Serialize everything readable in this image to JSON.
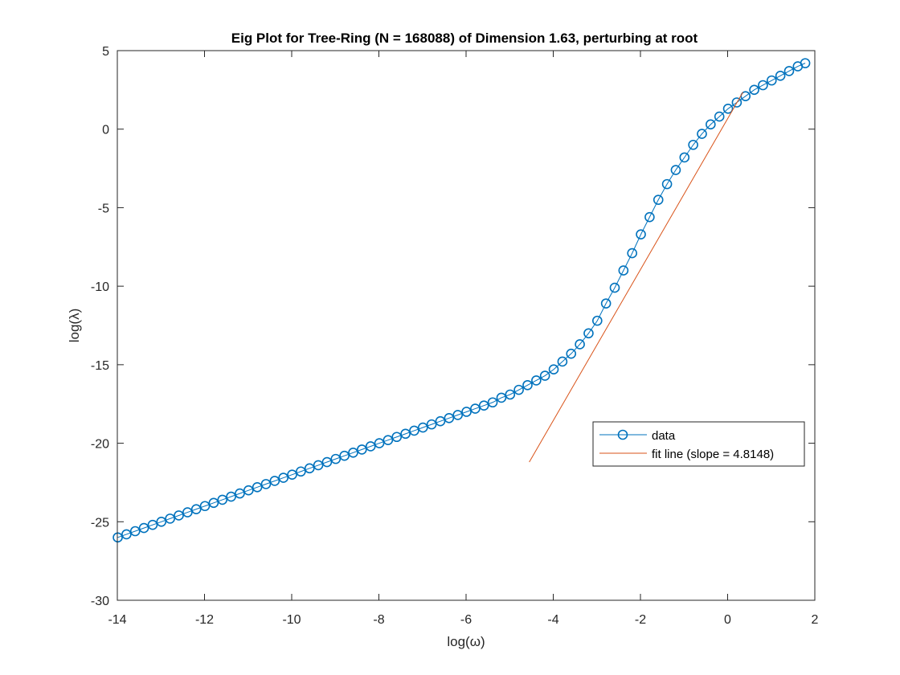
{
  "chart_data": {
    "type": "line",
    "title": "Eig Plot for Tree-Ring (N = 168088) of Dimension 1.63, perturbing at root",
    "xlabel": "log(ω)",
    "ylabel": "log(λ)",
    "xlim": [
      -14,
      2
    ],
    "ylim": [
      -30,
      5
    ],
    "xticks": [
      -14,
      -12,
      -10,
      -8,
      -6,
      -4,
      -2,
      0,
      2
    ],
    "yticks": [
      -30,
      -25,
      -20,
      -15,
      -10,
      -5,
      0,
      5
    ],
    "xtick_labels": [
      "-14",
      "-12",
      "-10",
      "-8",
      "-6",
      "-4",
      "-2",
      "0",
      "2"
    ],
    "ytick_labels": [
      "-30",
      "-25",
      "-20",
      "-15",
      "-10",
      "-5",
      "0",
      "5"
    ],
    "grid": false,
    "legend_position": "right",
    "series": [
      {
        "name": "data",
        "marker": "circle",
        "color": "#0072BD",
        "x": [
          -13.99,
          -13.79,
          -13.59,
          -13.39,
          -13.19,
          -12.99,
          -12.79,
          -12.59,
          -12.39,
          -12.19,
          -11.99,
          -11.79,
          -11.59,
          -11.39,
          -11.19,
          -10.99,
          -10.79,
          -10.59,
          -10.39,
          -10.19,
          -9.99,
          -9.79,
          -9.59,
          -9.39,
          -9.19,
          -8.99,
          -8.79,
          -8.59,
          -8.39,
          -8.19,
          -7.99,
          -7.79,
          -7.59,
          -7.39,
          -7.19,
          -6.99,
          -6.79,
          -6.59,
          -6.39,
          -6.19,
          -5.99,
          -5.79,
          -5.59,
          -5.39,
          -5.19,
          -4.99,
          -4.79,
          -4.59,
          -4.39,
          -4.19,
          -3.99,
          -3.79,
          -3.59,
          -3.39,
          -3.19,
          -2.99,
          -2.79,
          -2.59,
          -2.39,
          -2.19,
          -1.99,
          -1.79,
          -1.59,
          -1.39,
          -1.19,
          -0.99,
          -0.79,
          -0.59,
          -0.39,
          -0.19,
          0.01,
          0.21,
          0.41,
          0.61,
          0.81,
          1.01,
          1.21,
          1.41,
          1.61,
          1.78
        ],
        "y": [
          -26.0,
          -25.8,
          -25.6,
          -25.4,
          -25.2,
          -25.0,
          -24.8,
          -24.6,
          -24.4,
          -24.2,
          -24.0,
          -23.8,
          -23.6,
          -23.4,
          -23.2,
          -23.0,
          -22.8,
          -22.6,
          -22.4,
          -22.2,
          -22.0,
          -21.8,
          -21.6,
          -21.4,
          -21.2,
          -21.0,
          -20.8,
          -20.6,
          -20.4,
          -20.2,
          -20.0,
          -19.8,
          -19.6,
          -19.4,
          -19.2,
          -19.0,
          -18.8,
          -18.6,
          -18.4,
          -18.2,
          -18.0,
          -17.8,
          -17.6,
          -17.4,
          -17.1,
          -16.9,
          -16.6,
          -16.3,
          -16.0,
          -15.7,
          -15.3,
          -14.8,
          -14.3,
          -13.7,
          -13.0,
          -12.2,
          -11.1,
          -10.1,
          -9.0,
          -7.9,
          -6.7,
          -5.6,
          -4.5,
          -3.5,
          -2.6,
          -1.8,
          -1.0,
          -0.3,
          0.3,
          0.8,
          1.3,
          1.7,
          2.1,
          2.5,
          2.8,
          3.1,
          3.4,
          3.7,
          4.0,
          4.2
        ]
      },
      {
        "name": "fit line (slope = 4.8148)",
        "color": "#D95319",
        "x": [
          -4.55,
          0.35
        ],
        "y": [
          -21.2,
          2.35
        ]
      }
    ]
  }
}
